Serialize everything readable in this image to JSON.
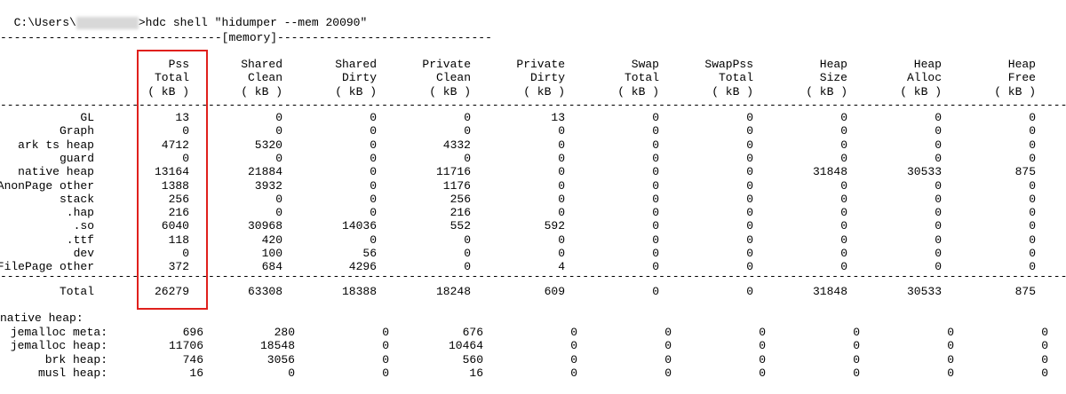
{
  "prompt": {
    "path_prefix": "C:\\Users\\",
    "path_suffix": ">",
    "command": "hdc shell \"hidumper --mem 20090\""
  },
  "section_header": "--------------------------------[memory]-------------------------------",
  "divider": "--------------------------------------------------------------------------------------------------------------------------------------------------------------",
  "highlight_color": "#e0201c",
  "columns": [
    {
      "l1": "Pss",
      "l2": "Total",
      "l3": "( kB )"
    },
    {
      "l1": "Shared",
      "l2": "Clean",
      "l3": "( kB )"
    },
    {
      "l1": "Shared",
      "l2": "Dirty",
      "l3": "( kB )"
    },
    {
      "l1": "Private",
      "l2": "Clean",
      "l3": "( kB )"
    },
    {
      "l1": "Private",
      "l2": "Dirty",
      "l3": "( kB )"
    },
    {
      "l1": "Swap",
      "l2": "Total",
      "l3": "( kB )"
    },
    {
      "l1": "SwapPss",
      "l2": "Total",
      "l3": "( kB )"
    },
    {
      "l1": "Heap",
      "l2": "Size",
      "l3": "( kB )"
    },
    {
      "l1": "Heap",
      "l2": "Alloc",
      "l3": "( kB )"
    },
    {
      "l1": "Heap",
      "l2": "Free",
      "l3": "( kB )"
    }
  ],
  "rows": [
    {
      "name": "GL",
      "v": [
        "13",
        "0",
        "0",
        "0",
        "13",
        "0",
        "0",
        "0",
        "0",
        "0"
      ]
    },
    {
      "name": "Graph",
      "v": [
        "0",
        "0",
        "0",
        "0",
        "0",
        "0",
        "0",
        "0",
        "0",
        "0"
      ]
    },
    {
      "name": "ark ts heap",
      "v": [
        "4712",
        "5320",
        "0",
        "4332",
        "0",
        "0",
        "0",
        "0",
        "0",
        "0"
      ]
    },
    {
      "name": "guard",
      "v": [
        "0",
        "0",
        "0",
        "0",
        "0",
        "0",
        "0",
        "0",
        "0",
        "0"
      ]
    },
    {
      "name": "native heap",
      "v": [
        "13164",
        "21884",
        "0",
        "11716",
        "0",
        "0",
        "0",
        "31848",
        "30533",
        "875"
      ]
    },
    {
      "name": "AnonPage other",
      "v": [
        "1388",
        "3932",
        "0",
        "1176",
        "0",
        "0",
        "0",
        "0",
        "0",
        "0"
      ]
    },
    {
      "name": "stack",
      "v": [
        "256",
        "0",
        "0",
        "256",
        "0",
        "0",
        "0",
        "0",
        "0",
        "0"
      ]
    },
    {
      "name": ".hap",
      "v": [
        "216",
        "0",
        "0",
        "216",
        "0",
        "0",
        "0",
        "0",
        "0",
        "0"
      ]
    },
    {
      "name": ".so",
      "v": [
        "6040",
        "30968",
        "14036",
        "552",
        "592",
        "0",
        "0",
        "0",
        "0",
        "0"
      ]
    },
    {
      "name": ".ttf",
      "v": [
        "118",
        "420",
        "0",
        "0",
        "0",
        "0",
        "0",
        "0",
        "0",
        "0"
      ]
    },
    {
      "name": "dev",
      "v": [
        "0",
        "100",
        "56",
        "0",
        "0",
        "0",
        "0",
        "0",
        "0",
        "0"
      ]
    },
    {
      "name": "FilePage other",
      "v": [
        "372",
        "684",
        "4296",
        "0",
        "4",
        "0",
        "0",
        "0",
        "0",
        "0"
      ]
    }
  ],
  "total": {
    "name": "Total",
    "v": [
      "26279",
      "63308",
      "18388",
      "18248",
      "609",
      "0",
      "0",
      "31848",
      "30533",
      "875"
    ]
  },
  "native_heap_title": "native heap:",
  "native_rows": [
    {
      "name": "jemalloc meta:",
      "v": [
        "696",
        "280",
        "0",
        "676",
        "0",
        "0",
        "0",
        "0",
        "0",
        "0"
      ]
    },
    {
      "name": "jemalloc heap:",
      "v": [
        "11706",
        "18548",
        "0",
        "10464",
        "0",
        "0",
        "0",
        "0",
        "0",
        "0"
      ]
    },
    {
      "name": "brk heap:",
      "v": [
        "746",
        "3056",
        "0",
        "560",
        "0",
        "0",
        "0",
        "0",
        "0",
        "0"
      ]
    },
    {
      "name": "musl heap:",
      "v": [
        "16",
        "0",
        "0",
        "16",
        "0",
        "0",
        "0",
        "0",
        "0",
        "0"
      ]
    }
  ]
}
